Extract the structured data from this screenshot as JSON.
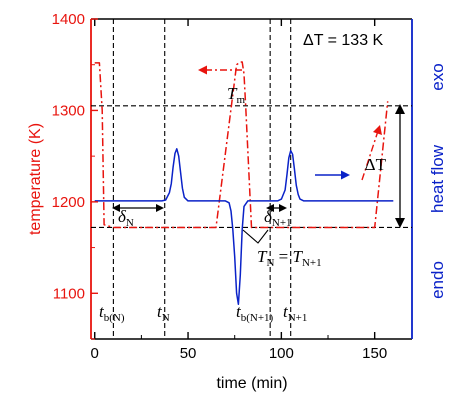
{
  "chart_data": {
    "type": "line",
    "title": "",
    "annotation_delta": "ΔT = 133 K",
    "xlabel": "time (min)",
    "ylabel_left": "temperature (K)",
    "ylabel_right_center": "heat flow",
    "ylabel_right_top": "exo",
    "ylabel_right_bottom": "endo",
    "xlim": [
      -2,
      170
    ],
    "ylim": [
      1050,
      1400
    ],
    "xticks": [
      "0",
      "50",
      "100",
      "150"
    ],
    "yticks": [
      "1100",
      "1200",
      "1300",
      "1400"
    ],
    "colors": {
      "temperature": "#e8140e",
      "heat_flow": "#0a22c8",
      "left_axis": "#e8140e",
      "right_axis": "#0a22c8"
    },
    "series": [
      {
        "name": "temperature",
        "axis": "left",
        "style": "dash-dot",
        "x": [
          0,
          2.5,
          4,
          5,
          10,
          65,
          76,
          78,
          79,
          80,
          81,
          84,
          150,
          157
        ],
        "y": [
          1352,
          1352,
          1300,
          1175,
          1172,
          1172,
          1350,
          1353,
          1353,
          1340,
          1300,
          1172,
          1172,
          1310
        ]
      },
      {
        "name": "heat flow",
        "axis": "right",
        "style": "solid",
        "x": [
          0,
          36,
          38,
          40,
          41,
          42,
          43,
          44,
          45,
          46,
          47,
          48,
          50,
          52,
          70,
          72,
          73,
          74,
          75,
          76,
          77,
          78,
          79,
          80,
          82,
          98,
          100,
          102,
          103,
          104,
          105,
          106,
          107,
          108,
          109,
          110,
          112,
          114,
          160
        ],
        "y": [
          1201,
          1201,
          1202,
          1210,
          1220,
          1238,
          1253,
          1258,
          1250,
          1232,
          1215,
          1205,
          1201,
          1201,
          1201,
          1199,
          1190,
          1170,
          1140,
          1100,
          1088,
          1120,
          1170,
          1195,
          1201,
          1201,
          1203,
          1213,
          1230,
          1248,
          1256,
          1252,
          1236,
          1218,
          1208,
          1203,
          1201,
          1201,
          1201
        ]
      }
    ],
    "reference_lines": {
      "horizontal": [
        {
          "y": 1305
        },
        {
          "y": 1172
        }
      ],
      "vertical": [
        {
          "x": 10
        },
        {
          "x": 37.5
        },
        {
          "x": 94
        },
        {
          "x": 105
        }
      ]
    },
    "labels": {
      "Tm": {
        "main": "T",
        "sub": "m"
      },
      "delta_N": {
        "main": "δ",
        "sub": "N"
      },
      "delta_N1": {
        "main": "δ",
        "sub": "N+1"
      },
      "TN_eq": {
        "m1": "T",
        "s1": "N",
        "eq": " = ",
        "m2": "T",
        "s2": "N+1"
      },
      "delta_T": "ΔT",
      "t_bN": {
        "main": "t",
        "sub": "b(N)"
      },
      "t_N": {
        "main": "t",
        "sub": "N"
      },
      "t_bN1": {
        "main": "t",
        "sub": "b(N+1)"
      },
      "t_N1": {
        "main": "t",
        "sub": "N+1"
      }
    }
  }
}
